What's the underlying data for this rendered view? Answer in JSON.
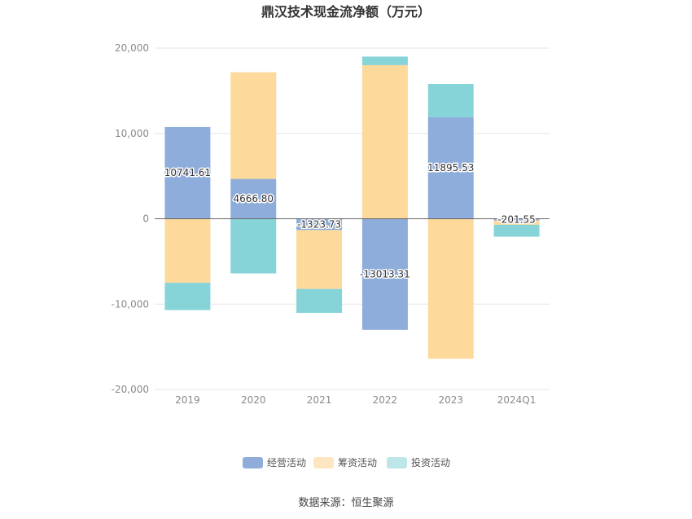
{
  "chart_data": {
    "type": "bar",
    "stacked": true,
    "title": "鼎汉技术现金流净额（万元）",
    "categories": [
      "2019",
      "2020",
      "2021",
      "2022",
      "2023",
      "2024Q1"
    ],
    "ylim": [
      -20000,
      20000
    ],
    "yticks": [
      20000,
      10000,
      0,
      -10000,
      -20000
    ],
    "ytick_labels": [
      "20,000",
      "10,000",
      "0",
      "-10,000",
      "-20,000"
    ],
    "grid": true,
    "legend_position": "bottom",
    "series": [
      {
        "name": "经营活动",
        "color": "#8eaddb",
        "values": [
          10741.61,
          4666.8,
          -1323.73,
          -13013.31,
          11895.53,
          -201.55
        ],
        "labels": [
          "10741.61",
          "4666.80",
          "-1323.73",
          "-13013.31",
          "11895.53",
          "-201.55"
        ]
      },
      {
        "name": "筹资活动",
        "color": "#fdd99b",
        "values": [
          -7500,
          12500,
          -6900,
          18000,
          -16400,
          -500
        ]
      },
      {
        "name": "投资活动",
        "color": "#86d4d8",
        "values": [
          -3200,
          -6400,
          -2800,
          1000,
          3900,
          -1400
        ]
      }
    ]
  },
  "legend_colors": [
    "#8eaddb",
    "#ffe6c2",
    "#bde6e8"
  ],
  "source_text": "数据来源：恒生聚源"
}
